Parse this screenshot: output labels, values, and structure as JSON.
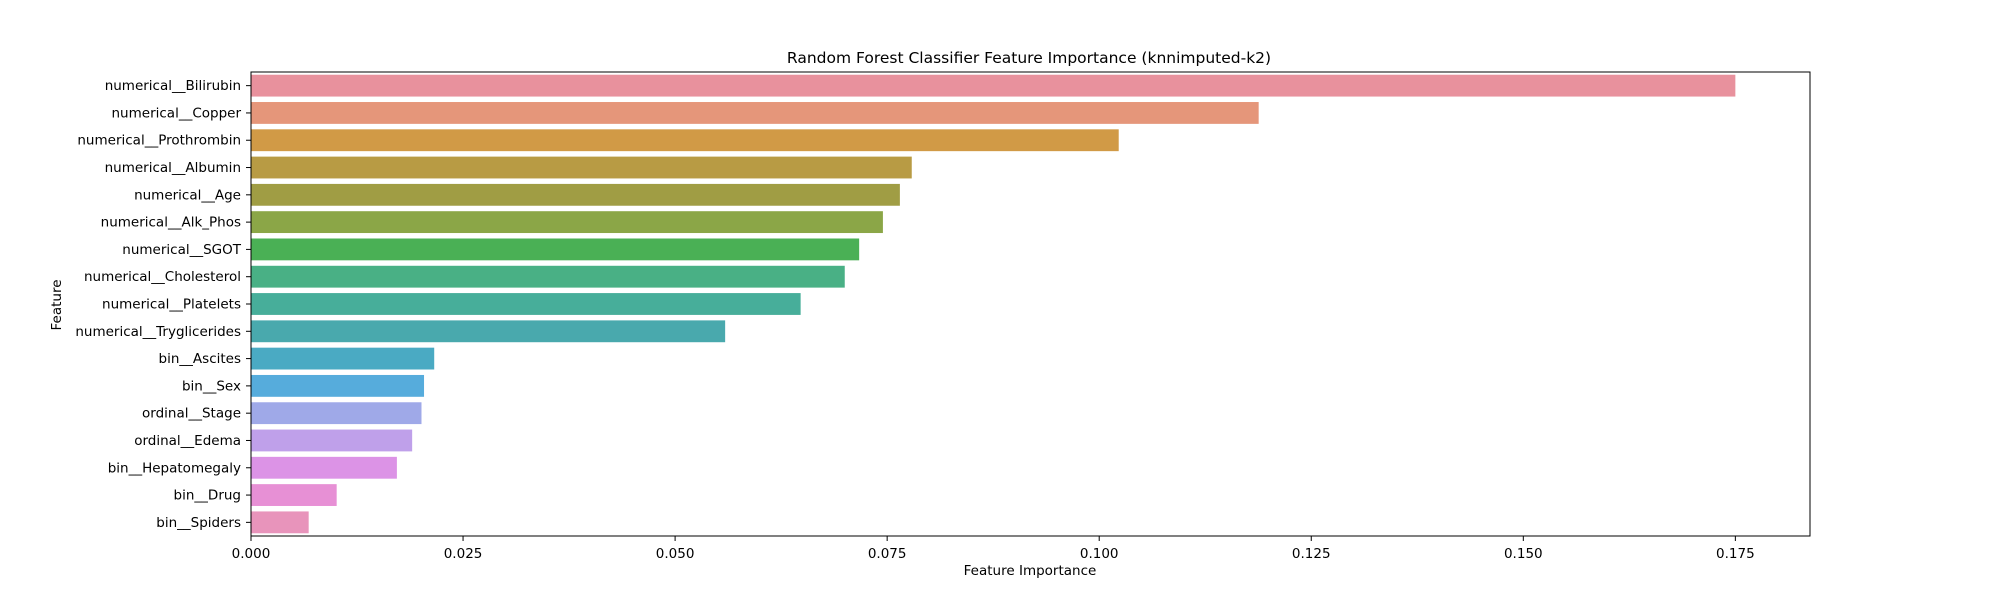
{
  "chart_data": {
    "type": "bar",
    "orientation": "horizontal",
    "title": "Random Forest Classifier Feature Importance (knnimputed-k2)",
    "xlabel": "Feature Importance",
    "ylabel": "Feature",
    "xlim": [
      0,
      0.1838
    ],
    "xticks": [
      "0.000",
      "0.025",
      "0.050",
      "0.075",
      "0.100",
      "0.125",
      "0.150",
      "0.175"
    ],
    "grid": false,
    "legend": "none",
    "categories": [
      "numerical__Bilirubin",
      "numerical__Copper",
      "numerical__Prothrombin",
      "numerical__Albumin",
      "numerical__Age",
      "numerical__Alk_Phos",
      "numerical__SGOT",
      "numerical__Cholesterol",
      "numerical__Platelets",
      "numerical__Tryglicerides",
      "bin__Ascites",
      "bin__Sex",
      "ordinal__Stage",
      "ordinal__Edema",
      "bin__Hepatomegaly",
      "bin__Drug",
      "bin__Spiders"
    ],
    "values": [
      0.175,
      0.1188,
      0.1023,
      0.0779,
      0.0765,
      0.0745,
      0.0717,
      0.07,
      0.0648,
      0.0559,
      0.0216,
      0.0204,
      0.0201,
      0.019,
      0.0172,
      0.0101,
      0.0068
    ],
    "colors": [
      "#e8919d",
      "#e5967a",
      "#d19a46",
      "#b89b44",
      "#a09d44",
      "#8ba647",
      "#4ab055",
      "#49b085",
      "#47ae9a",
      "#49a9ad",
      "#4aaac3",
      "#56acdc",
      "#9fa9e8",
      "#bfa0ea",
      "#dc93e6",
      "#e790d5",
      "#e894bb"
    ]
  }
}
